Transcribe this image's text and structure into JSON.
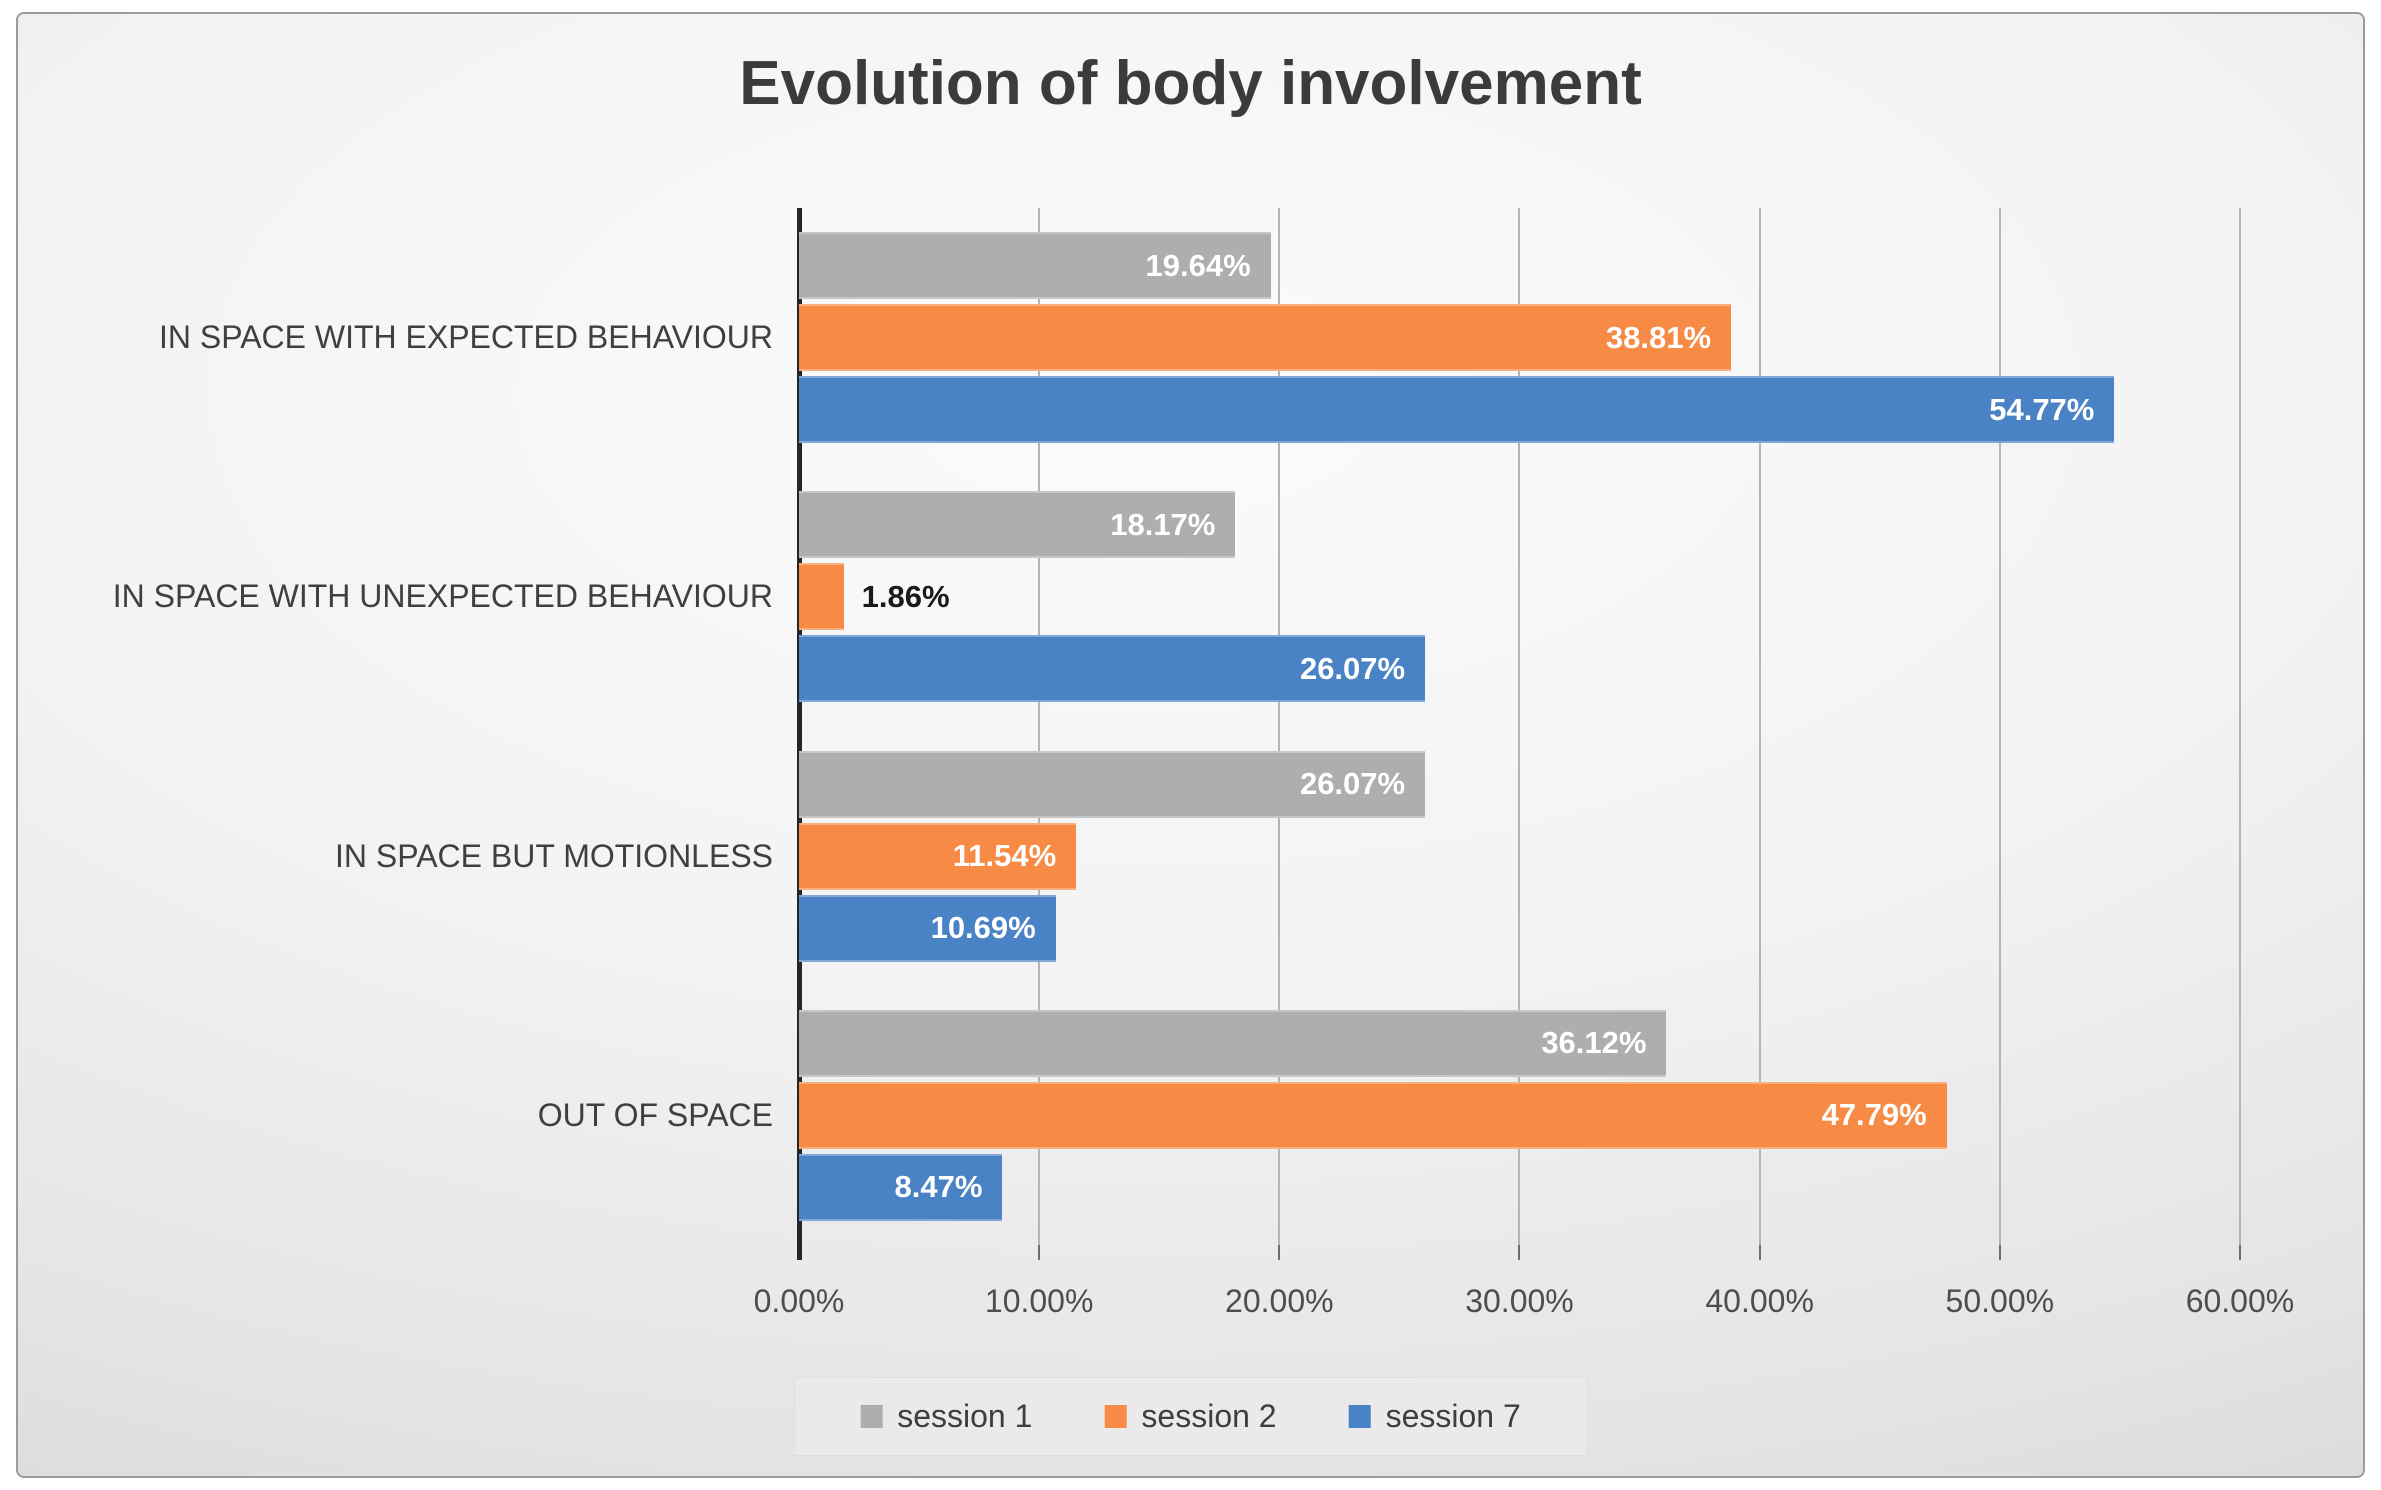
{
  "title": "Evolution of body involvement",
  "chart_data": {
    "type": "bar",
    "orientation": "horizontal",
    "title": "Evolution of body involvement",
    "categories": [
      "IN SPACE WITH EXPECTED BEHAVIOUR",
      "IN SPACE WITH UNEXPECTED BEHAVIOUR",
      "IN SPACE BUT MOTIONLESS",
      "OUT OF SPACE"
    ],
    "series": [
      {
        "name": "session 1",
        "color": "#aeaeae",
        "values": [
          19.64,
          18.17,
          26.07,
          36.12
        ],
        "labels": [
          "19.64%",
          "18.17%",
          "26.07%",
          "36.12%"
        ]
      },
      {
        "name": "session 2",
        "color": "#f78b45",
        "values": [
          38.81,
          1.86,
          11.54,
          47.79
        ],
        "labels": [
          "38.81%",
          "1.86%",
          "11.54%",
          "47.79%"
        ]
      },
      {
        "name": "session 7",
        "color": "#4a82c6",
        "values": [
          54.77,
          26.07,
          10.69,
          8.47
        ],
        "labels": [
          "54.77%",
          "26.07%",
          "10.69%",
          "8.47%"
        ]
      }
    ],
    "x_ticks": [
      {
        "value": 0,
        "label": "0.00%"
      },
      {
        "value": 10,
        "label": "10.00%"
      },
      {
        "value": 20,
        "label": "20.00%"
      },
      {
        "value": 30,
        "label": "30.00%"
      },
      {
        "value": 40,
        "label": "40.00%"
      },
      {
        "value": 50,
        "label": "50.00%"
      },
      {
        "value": 60,
        "label": "60.00%"
      }
    ],
    "xlim": [
      0,
      62
    ],
    "grid": true,
    "legend_position": "bottom",
    "value_label_inside_color": "#ffffff",
    "value_label_outside_color": "#1a1a1a",
    "outside_label_threshold": 5
  },
  "legend": {
    "items": [
      {
        "label": "session 1",
        "color": "#aeaeae"
      },
      {
        "label": "session 2",
        "color": "#f78b45"
      },
      {
        "label": "session 7",
        "color": "#4a82c6"
      }
    ]
  }
}
